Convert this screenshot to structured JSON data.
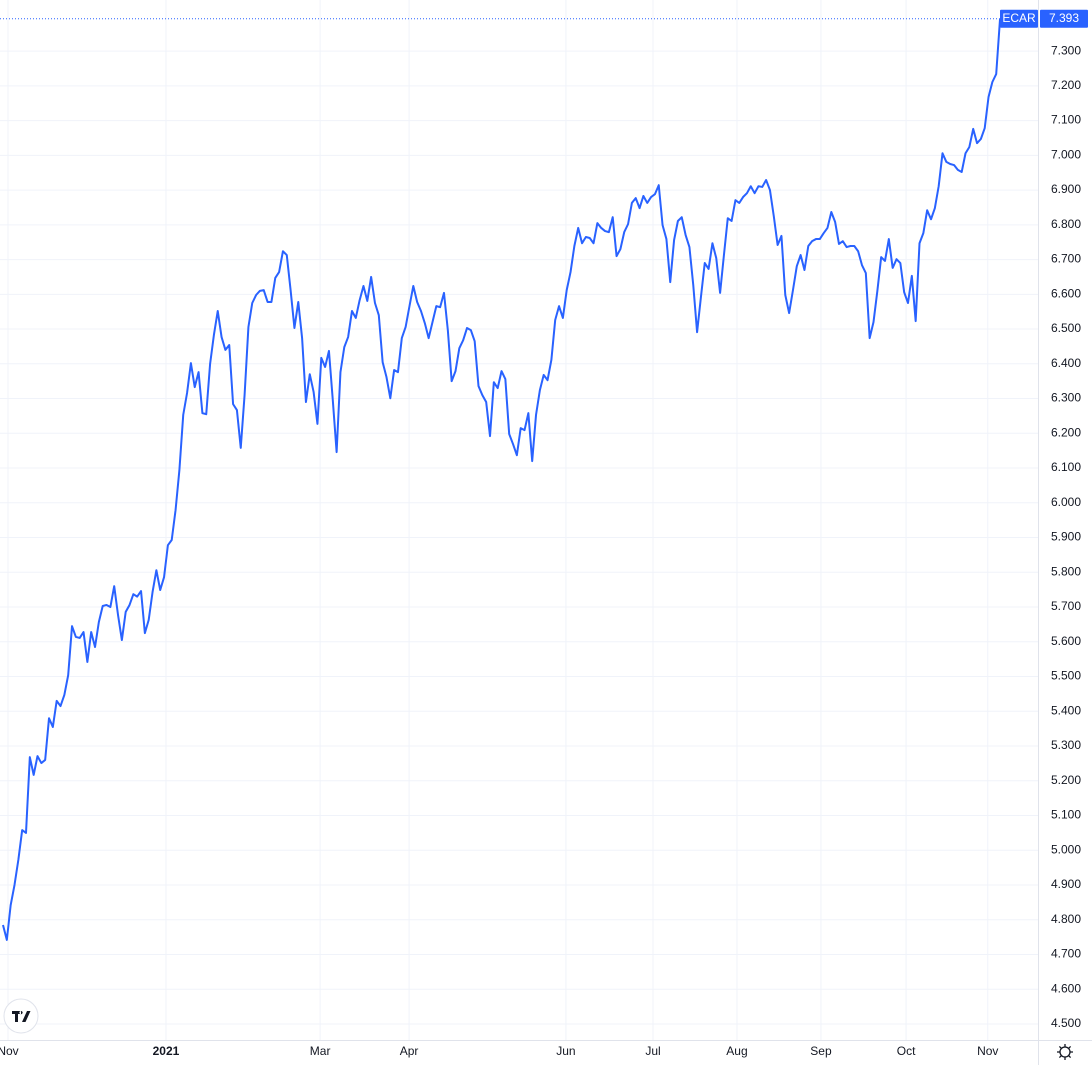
{
  "chart_data": {
    "type": "line",
    "x": [
      0,
      1,
      2,
      3,
      4,
      5,
      6,
      7,
      8,
      9,
      10,
      11,
      12,
      13,
      14,
      15,
      16,
      17,
      18,
      19,
      20,
      21,
      22,
      23,
      24,
      25,
      26,
      27,
      28,
      29,
      30,
      31,
      32,
      33,
      34,
      35,
      36,
      37,
      38,
      39,
      40,
      41,
      42,
      43,
      44,
      45,
      46,
      47,
      48,
      49,
      50,
      51,
      52,
      53,
      54,
      55,
      56,
      57,
      58,
      59,
      60,
      61,
      62,
      63,
      64,
      65,
      66,
      67,
      68,
      69,
      70,
      71,
      72,
      73,
      74,
      75,
      76,
      77,
      78,
      79,
      80,
      81,
      82,
      83,
      84,
      85,
      86,
      87,
      88,
      89,
      90,
      91,
      92,
      93,
      94,
      95,
      96,
      97,
      98,
      99,
      100,
      101,
      102,
      103,
      104,
      105,
      106,
      107,
      108,
      109,
      110,
      111,
      112,
      113,
      114,
      115,
      116,
      117,
      118,
      119,
      120,
      121,
      122,
      123,
      124,
      125,
      126,
      127,
      128,
      129,
      130,
      131,
      132,
      133,
      134,
      135,
      136,
      137,
      138,
      139,
      140,
      141,
      142,
      143,
      144,
      145,
      146,
      147,
      148,
      149,
      150,
      151,
      152,
      153,
      154,
      155,
      156,
      157,
      158,
      159,
      160,
      161,
      162,
      163,
      164,
      165,
      166,
      167,
      168,
      169,
      170,
      171,
      172,
      173,
      174,
      175,
      176,
      177,
      178,
      179,
      180,
      181,
      182,
      183,
      184,
      185,
      186,
      187,
      188,
      189,
      190,
      191,
      192,
      193,
      194,
      195,
      196,
      197,
      198,
      199,
      200,
      201,
      202,
      203,
      204,
      205,
      206,
      207,
      208,
      209,
      210,
      211,
      212,
      213,
      214,
      215,
      216,
      217,
      218,
      219,
      220,
      221,
      222,
      223,
      224,
      225,
      226,
      227,
      228,
      229,
      230,
      231,
      232,
      233,
      234,
      235,
      236,
      237,
      238,
      239,
      240,
      241,
      242,
      243,
      244,
      245,
      246,
      247,
      248,
      249,
      250,
      251,
      252,
      253,
      254,
      255,
      256,
      257,
      258,
      259,
      260
    ],
    "series": [
      {
        "name": "ECAR",
        "color": "#2962ff",
        "values": [
          4.785,
          4.742,
          4.842,
          4.9,
          4.972,
          5.058,
          5.05,
          5.268,
          5.217,
          5.271,
          5.251,
          5.26,
          5.38,
          5.355,
          5.43,
          5.415,
          5.447,
          5.504,
          5.645,
          5.614,
          5.611,
          5.628,
          5.542,
          5.628,
          5.585,
          5.657,
          5.703,
          5.706,
          5.7,
          5.76,
          5.677,
          5.605,
          5.686,
          5.706,
          5.737,
          5.73,
          5.746,
          5.625,
          5.663,
          5.743,
          5.806,
          5.749,
          5.786,
          5.878,
          5.893,
          5.979,
          6.094,
          6.253,
          6.316,
          6.402,
          6.333,
          6.376,
          6.258,
          6.255,
          6.399,
          6.483,
          6.552,
          6.477,
          6.44,
          6.454,
          6.284,
          6.267,
          6.158,
          6.31,
          6.506,
          6.575,
          6.598,
          6.61,
          6.612,
          6.578,
          6.578,
          6.647,
          6.664,
          6.724,
          6.713,
          6.612,
          6.503,
          6.578,
          6.474,
          6.29,
          6.37,
          6.319,
          6.227,
          6.417,
          6.391,
          6.437,
          6.296,
          6.146,
          6.376,
          6.448,
          6.477,
          6.552,
          6.532,
          6.583,
          6.624,
          6.581,
          6.65,
          6.575,
          6.54,
          6.405,
          6.362,
          6.301,
          6.382,
          6.376,
          6.474,
          6.506,
          6.566,
          6.624,
          6.578,
          6.552,
          6.517,
          6.474,
          6.52,
          6.566,
          6.563,
          6.604,
          6.497,
          6.35,
          6.379,
          6.445,
          6.468,
          6.503,
          6.497,
          6.465,
          6.336,
          6.31,
          6.29,
          6.192,
          6.347,
          6.33,
          6.379,
          6.356,
          6.198,
          6.169,
          6.137,
          6.215,
          6.209,
          6.258,
          6.12,
          6.253,
          6.324,
          6.368,
          6.353,
          6.411,
          6.526,
          6.566,
          6.532,
          6.612,
          6.664,
          6.739,
          6.791,
          6.747,
          6.765,
          6.762,
          6.747,
          6.805,
          6.791,
          6.782,
          6.779,
          6.822,
          6.71,
          6.73,
          6.779,
          6.802,
          6.863,
          6.877,
          6.848,
          6.883,
          6.863,
          6.88,
          6.888,
          6.914,
          6.799,
          6.759,
          6.635,
          6.756,
          6.811,
          6.822,
          6.771,
          6.736,
          6.627,
          6.491,
          6.592,
          6.69,
          6.673,
          6.747,
          6.704,
          6.604,
          6.713,
          6.819,
          6.811,
          6.871,
          6.863,
          6.88,
          6.891,
          6.911,
          6.891,
          6.911,
          6.909,
          6.929,
          6.9,
          6.825,
          6.742,
          6.768,
          6.598,
          6.546,
          6.612,
          6.681,
          6.713,
          6.67,
          6.739,
          6.753,
          6.759,
          6.759,
          6.776,
          6.791,
          6.837,
          6.808,
          6.745,
          6.753,
          6.736,
          6.739,
          6.739,
          6.724,
          6.684,
          6.661,
          6.474,
          6.52,
          6.609,
          6.707,
          6.696,
          6.759,
          6.676,
          6.701,
          6.69,
          6.606,
          6.575,
          6.653,
          6.523,
          6.747,
          6.776,
          6.842,
          6.816,
          6.848,
          6.911,
          7.006,
          6.981,
          6.975,
          6.972,
          6.958,
          6.952,
          7.006,
          7.024,
          7.076,
          7.035,
          7.047,
          7.078,
          7.168,
          7.211,
          7.234,
          7.393
        ]
      }
    ],
    "xlim": [
      -0.78,
      269.9
    ],
    "xticks": [
      {
        "value": 1.3,
        "label": "Nov"
      },
      {
        "value": 42.5,
        "label": "2021"
      },
      {
        "value": 82.7,
        "label": "Mar"
      },
      {
        "value": 105.9,
        "label": "Apr"
      },
      {
        "value": 146.8,
        "label": "Jun"
      },
      {
        "value": 169.5,
        "label": "Jul"
      },
      {
        "value": 191.4,
        "label": "Aug"
      },
      {
        "value": 213.3,
        "label": "Sep"
      },
      {
        "value": 235.5,
        "label": "Oct"
      },
      {
        "value": 256.8,
        "label": "Nov"
      }
    ],
    "ylim": [
      4.454,
      7.447
    ],
    "yticks": [
      {
        "value": 4.5,
        "label": "4.500"
      },
      {
        "value": 4.6,
        "label": "4.600"
      },
      {
        "value": 4.7,
        "label": "4.700"
      },
      {
        "value": 4.8,
        "label": "4.800"
      },
      {
        "value": 4.9,
        "label": "4.900"
      },
      {
        "value": 5.0,
        "label": "5.000"
      },
      {
        "value": 5.1,
        "label": "5.100"
      },
      {
        "value": 5.2,
        "label": "5.200"
      },
      {
        "value": 5.3,
        "label": "5.300"
      },
      {
        "value": 5.4,
        "label": "5.400"
      },
      {
        "value": 5.5,
        "label": "5.500"
      },
      {
        "value": 5.6,
        "label": "5.600"
      },
      {
        "value": 5.7,
        "label": "5.700"
      },
      {
        "value": 5.8,
        "label": "5.800"
      },
      {
        "value": 5.9,
        "label": "5.900"
      },
      {
        "value": 6.0,
        "label": "6.000"
      },
      {
        "value": 6.1,
        "label": "6.100"
      },
      {
        "value": 6.2,
        "label": "6.200"
      },
      {
        "value": 6.3,
        "label": "6.300"
      },
      {
        "value": 6.4,
        "label": "6.400"
      },
      {
        "value": 6.5,
        "label": "6.500"
      },
      {
        "value": 6.6,
        "label": "6.600"
      },
      {
        "value": 6.7,
        "label": "6.700"
      },
      {
        "value": 6.8,
        "label": "6.800"
      },
      {
        "value": 6.9,
        "label": "6.900"
      },
      {
        "value": 7.0,
        "label": "7.000"
      },
      {
        "value": 7.1,
        "label": "7.100"
      },
      {
        "value": 7.2,
        "label": "7.200"
      },
      {
        "value": 7.3,
        "label": "7.300"
      }
    ],
    "grid": true
  }
}
